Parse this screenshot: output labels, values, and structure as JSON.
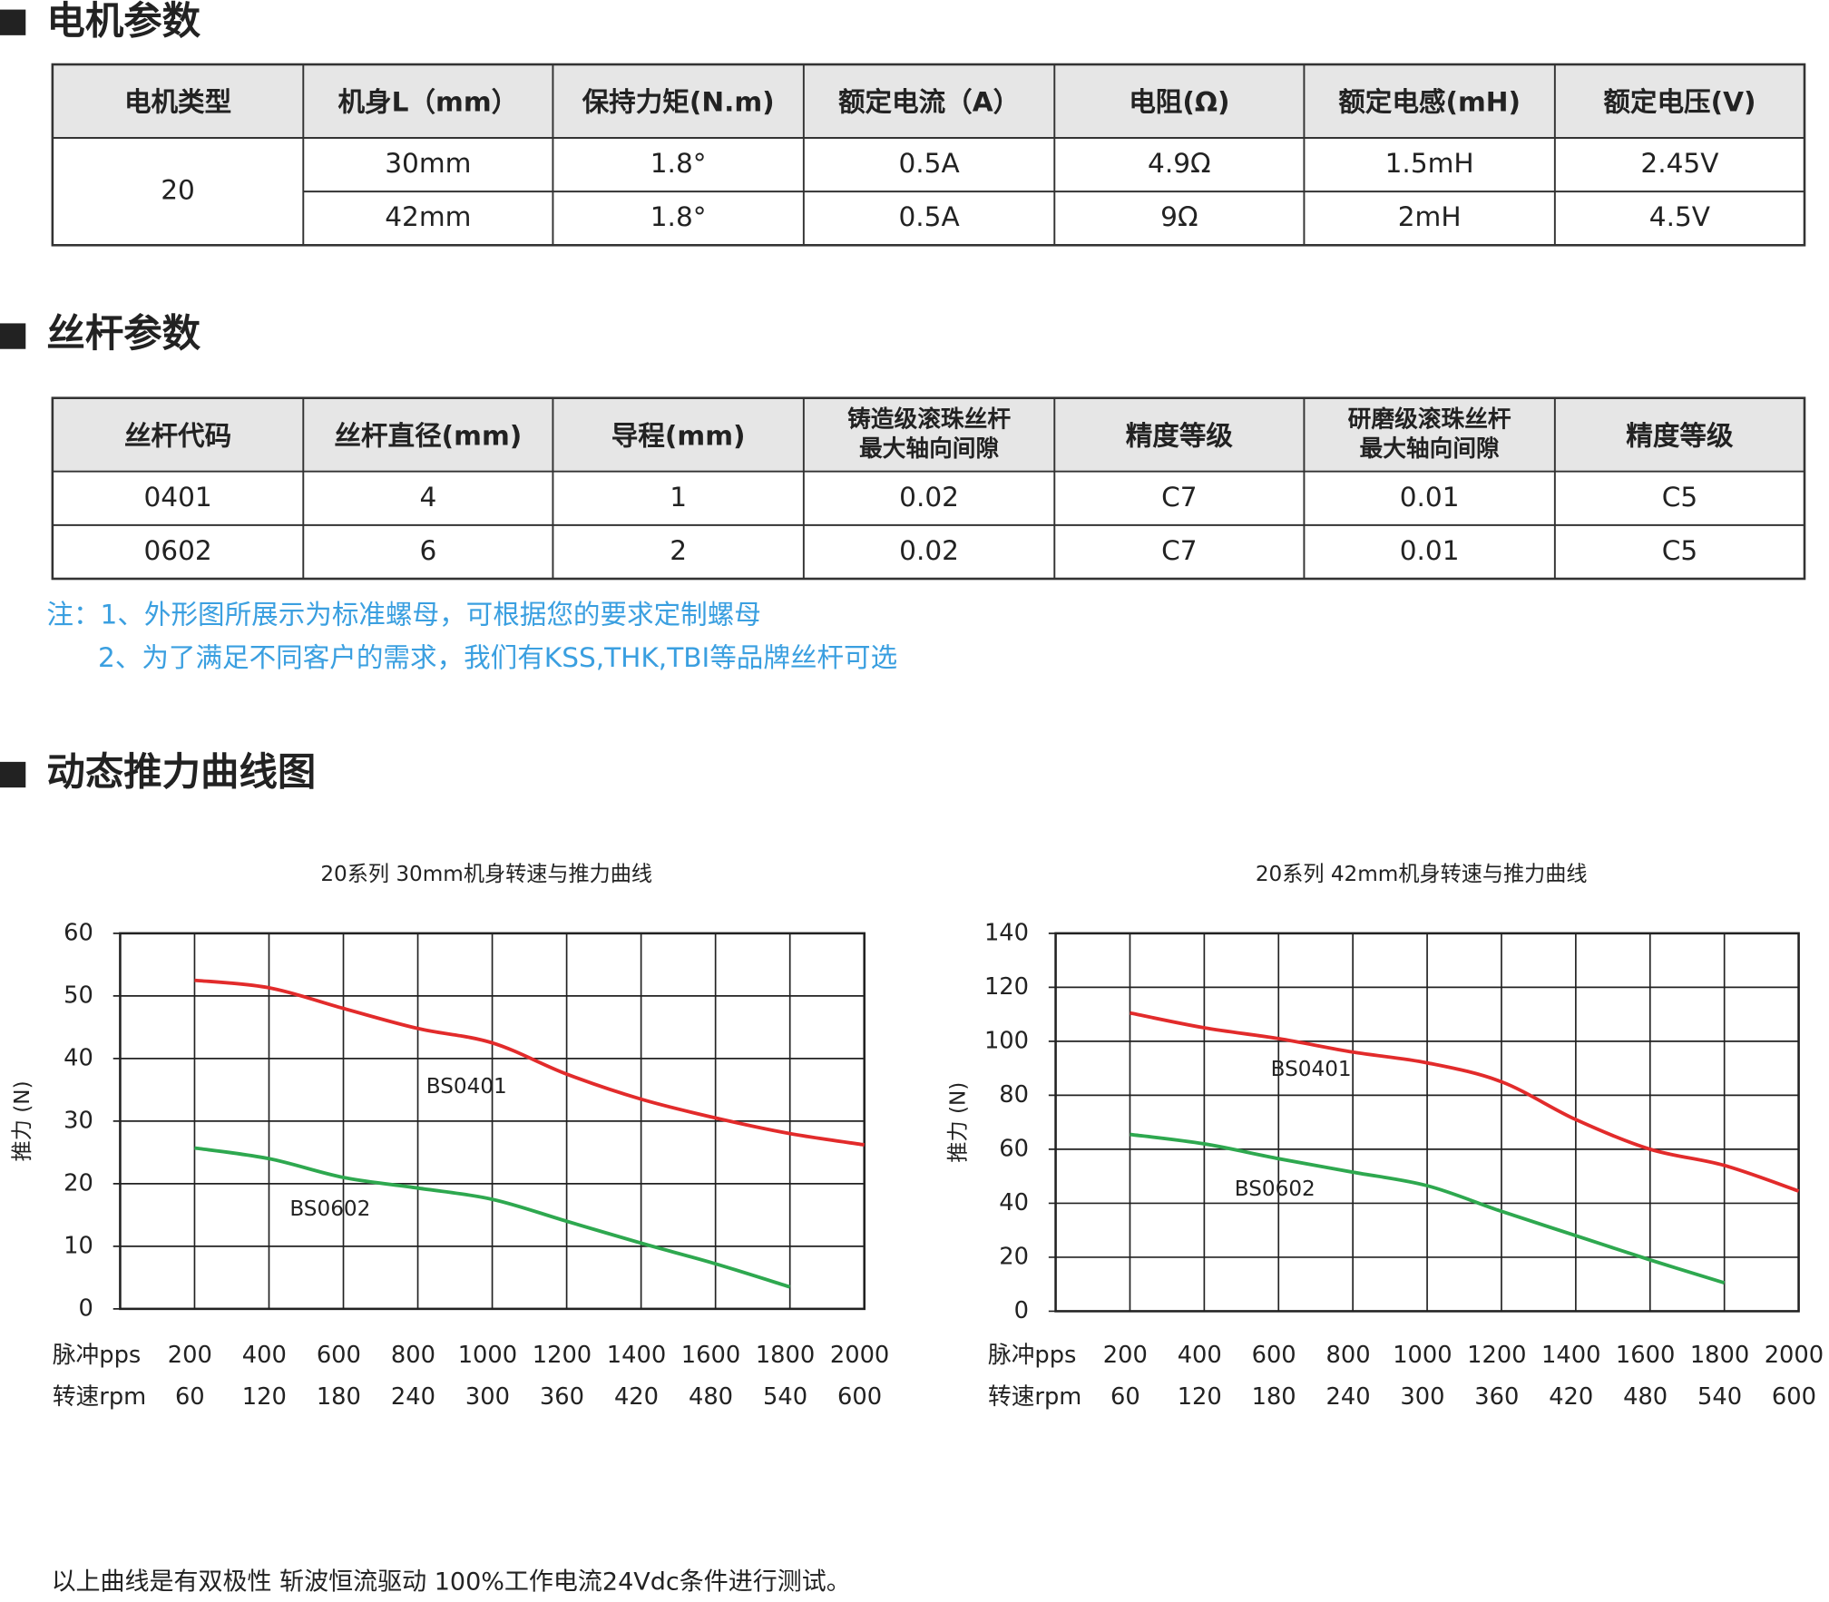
{
  "motor_params": {
    "heading": "电机参数",
    "headers": [
      "电机类型",
      "机身L（mm）",
      "保持力矩(N.m)",
      "额定电流（A）",
      "电阻(Ω)",
      "额定电感(mH)",
      "额定电压(V)"
    ],
    "rows": [
      [
        "20",
        "30mm",
        "1.8°",
        "0.5A",
        "4.9Ω",
        "1.5mH",
        "2.45V"
      ],
      [
        "42mm",
        "1.8°",
        "0.5A",
        "9Ω",
        "2mH",
        "4.5V"
      ]
    ]
  },
  "screw_params": {
    "heading": "丝杆参数",
    "headers": [
      [
        "丝杆代码"
      ],
      [
        "丝杆直径(mm)"
      ],
      [
        "导程(mm)"
      ],
      [
        "铸造级滚珠丝杆",
        "最大轴向间隙"
      ],
      [
        "精度等级"
      ],
      [
        "研磨级滚珠丝杆",
        "最大轴向间隙"
      ],
      [
        "精度等级"
      ]
    ],
    "rows": [
      [
        "0401",
        "4",
        "1",
        "0.02",
        "C7",
        "0.01",
        "C5"
      ],
      [
        "0602",
        "6",
        "2",
        "0.02",
        "C7",
        "0.01",
        "C5"
      ]
    ],
    "notes": [
      "注：1、外形图所展示为标准螺母，可根据您的要求定制螺母",
      "2、为了满足不同客户的需求，我们有KSS,THK,TBI等品牌丝杆可选"
    ]
  },
  "thrust_curves": {
    "heading": "动态推力曲线图",
    "footnote": "以上曲线是有双极性 斩波恒流驱动 100%工作电流24Vdc条件进行测试。"
  },
  "chart_data": [
    {
      "type": "line",
      "title": "20系列 30mm机身转速与推力曲线",
      "ylabel": "推力 (N)",
      "xlabel": "脉冲pps",
      "x2label": "转速rpm",
      "x": [
        200,
        400,
        600,
        800,
        1000,
        1200,
        1400,
        1600,
        1800,
        2000
      ],
      "xlim": [
        0,
        2000
      ],
      "xticks": [
        200,
        400,
        600,
        800,
        1000,
        1200,
        1400,
        1600,
        1800,
        2000
      ],
      "x2lim": [
        0,
        600
      ],
      "x2ticks": [
        60,
        120,
        180,
        240,
        300,
        360,
        420,
        480,
        540,
        600
      ],
      "ylim": [
        0,
        60
      ],
      "yticks": [
        0,
        10,
        20,
        30,
        40,
        50,
        60
      ],
      "grid": true,
      "series": [
        {
          "name": "BS0401",
          "color": "#e22b2b",
          "values": [
            52.5,
            51.3,
            48,
            44.8,
            42.5,
            37.5,
            33.5,
            30.5,
            28,
            26.2
          ]
        },
        {
          "name": "BS0602",
          "color": "#2ea84f",
          "values": [
            25.7,
            24,
            21,
            19.3,
            17.5,
            14,
            10.5,
            7.2,
            3.5,
            null
          ]
        }
      ]
    },
    {
      "type": "line",
      "title": "20系列 42mm机身转速与推力曲线",
      "ylabel": "推力 (N)",
      "xlabel": "脉冲pps",
      "x2label": "转速rpm",
      "x": [
        200,
        400,
        600,
        800,
        1000,
        1200,
        1400,
        1600,
        1800,
        2000
      ],
      "xlim": [
        0,
        2000
      ],
      "xticks": [
        200,
        400,
        600,
        800,
        1000,
        1200,
        1400,
        1600,
        1800,
        2000
      ],
      "x2lim": [
        0,
        600
      ],
      "x2ticks": [
        60,
        120,
        180,
        240,
        300,
        360,
        420,
        480,
        540,
        600
      ],
      "ylim": [
        0,
        140
      ],
      "yticks": [
        0,
        20,
        40,
        60,
        80,
        100,
        120,
        140
      ],
      "grid": true,
      "series": [
        {
          "name": "BS0401",
          "color": "#e22b2b",
          "values": [
            110.5,
            105,
            101,
            96,
            92,
            85,
            71,
            60,
            54,
            44.5
          ]
        },
        {
          "name": "BS0602",
          "color": "#2ea84f",
          "values": [
            65.5,
            62,
            56.5,
            51.5,
            46.5,
            37,
            28,
            19,
            10.5,
            null
          ]
        }
      ]
    }
  ]
}
